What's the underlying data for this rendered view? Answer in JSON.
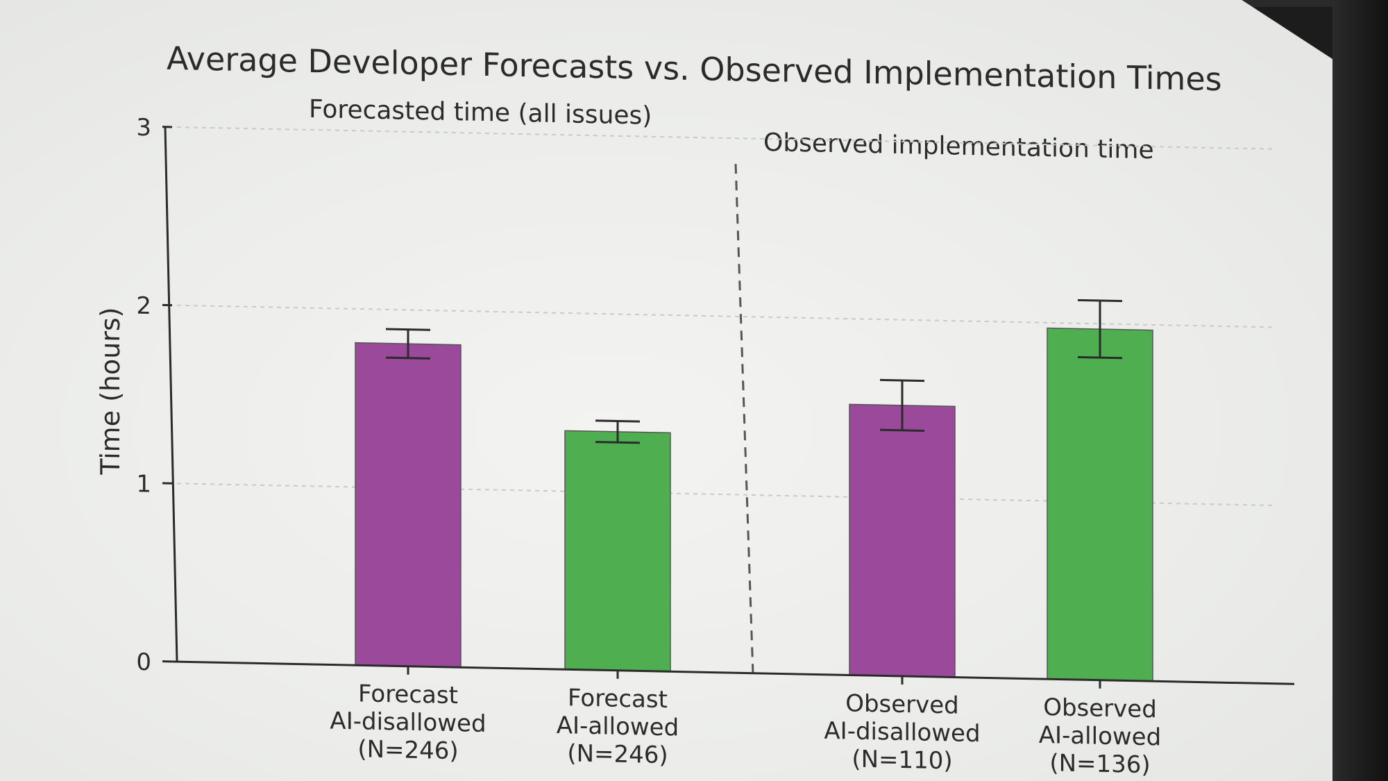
{
  "chart_data": {
    "type": "bar",
    "title": "Average Developer Forecasts vs. Observed Implementation Times",
    "ylabel": "Time (hours)",
    "xlabel": "",
    "ylim": [
      0,
      3
    ],
    "yticks": [
      "0",
      "1",
      "2",
      "3"
    ],
    "grid": true,
    "groups": [
      {
        "label": "Forecasted time (all issues)"
      },
      {
        "label": "Observed implementation time"
      }
    ],
    "categories": [
      [
        "Forecast",
        "AI-disallowed",
        "(N=246)"
      ],
      [
        "Forecast",
        "AI-allowed",
        "(N=246)"
      ],
      [
        "Observed",
        "AI-disallowed",
        "(N=110)"
      ],
      [
        "Observed",
        "AI-allowed",
        "(N=136)"
      ]
    ],
    "values": [
      1.81,
      1.34,
      1.52,
      1.97
    ],
    "error_low": [
      1.73,
      1.28,
      1.38,
      1.81
    ],
    "error_high": [
      1.89,
      1.4,
      1.66,
      2.13
    ],
    "colors": [
      "#9b4a9b",
      "#4fae4f",
      "#9b4a9b",
      "#4fae4f"
    ]
  }
}
